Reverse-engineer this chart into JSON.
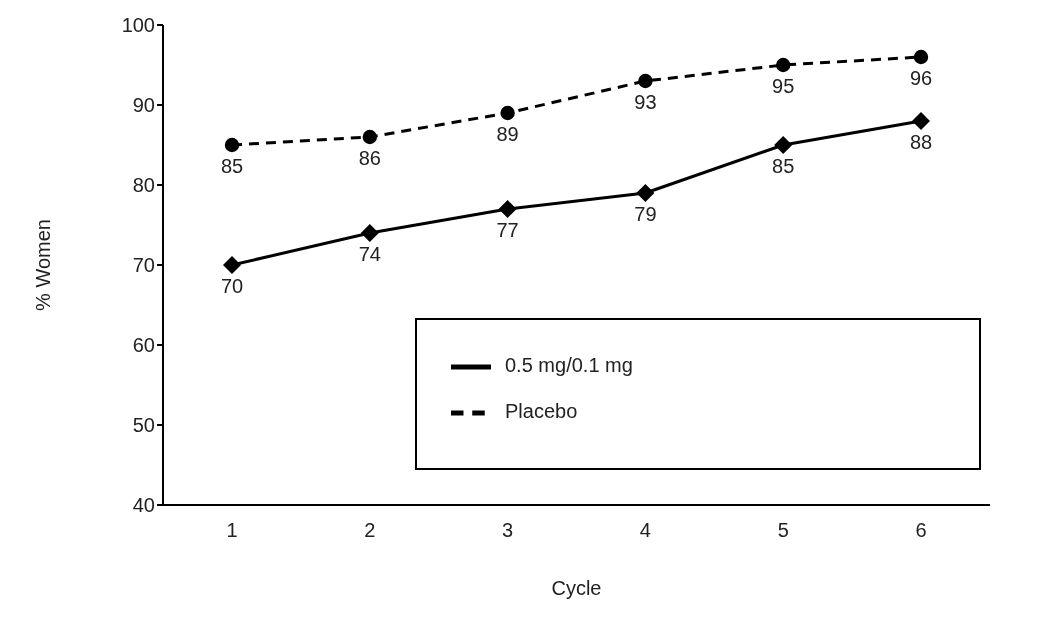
{
  "chart_data": {
    "type": "line",
    "xlabel": "Cycle",
    "ylabel": "% Women",
    "categories": [
      "1",
      "2",
      "3",
      "4",
      "5",
      "6"
    ],
    "series": [
      {
        "name": "0.5 mg/0.1 mg",
        "color": "#000000",
        "marker": "diamond",
        "line_style": "solid",
        "values": [
          70,
          74,
          77,
          79,
          85,
          88
        ]
      },
      {
        "name": "Placebo",
        "color": "#000000",
        "marker": "circle",
        "line_style": "dashed",
        "values": [
          85,
          86,
          89,
          93,
          95,
          96
        ]
      }
    ],
    "ylim": [
      40,
      100
    ],
    "yticks": [
      40,
      50,
      60,
      70,
      80,
      90,
      100
    ],
    "grid": false,
    "legend": "bottom right",
    "data_labels": true
  }
}
